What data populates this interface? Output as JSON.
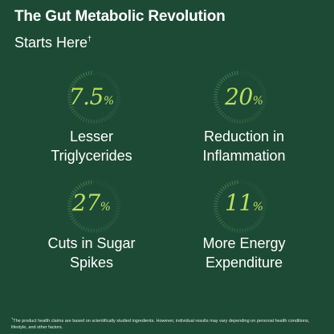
{
  "header": {
    "title": "The Gut Metabolic Revolution",
    "subtitle": "Starts Here",
    "subtitle_mark": "†"
  },
  "stats": [
    {
      "value": "7.5",
      "unit": "%",
      "label_line1": "Lesser",
      "label_line2": "Triglycerides"
    },
    {
      "value": "20",
      "unit": "%",
      "label_line1": "Reduction in",
      "label_line2": "Inflammation"
    },
    {
      "value": "27",
      "unit": "%",
      "label_line1": "Cuts in Sugar",
      "label_line2": "Spikes"
    },
    {
      "value": "11",
      "unit": "%",
      "label_line1": "More Energy",
      "label_line2": "Expenditure"
    }
  ],
  "footnote": {
    "mark": "†",
    "text": "The product health claims are based on scientifically studied ingredients. However, individual results may vary depending on personal health conditions, lifestyle, and other factors."
  },
  "colors": {
    "background": "#1d4a35",
    "accent": "#b9e05f",
    "ring": "#3f7a50"
  }
}
